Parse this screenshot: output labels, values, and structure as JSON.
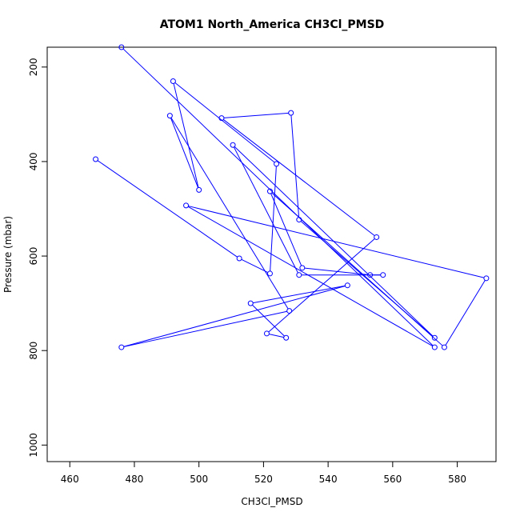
{
  "chart_data": {
    "type": "line",
    "title": "ATOM1 North_America CH3Cl_PMSD",
    "xlabel": "CH3Cl_PMSD",
    "ylabel": "Pressure (mbar)",
    "xlim": [
      453,
      592
    ],
    "ylim": [
      1035,
      158
    ],
    "y_reversed": true,
    "x_ticks": [
      460,
      480,
      500,
      520,
      540,
      560,
      580
    ],
    "y_ticks": [
      200,
      400,
      600,
      800,
      1000
    ],
    "series_color": "#0000ff",
    "series": [
      {
        "points": [
          [
            468,
            395
          ],
          [
            512.5,
            605
          ],
          [
            522,
            637
          ],
          [
            524,
            405
          ],
          [
            492,
            230
          ],
          [
            500,
            460
          ],
          [
            491,
            303
          ],
          [
            528,
            716
          ],
          [
            476,
            793
          ],
          [
            546,
            662
          ],
          [
            516,
            700
          ],
          [
            527,
            773
          ],
          [
            521,
            764
          ],
          [
            555,
            560
          ],
          [
            507,
            308
          ],
          [
            528.5,
            297
          ],
          [
            531,
            523
          ],
          [
            573,
            773
          ],
          [
            510.5,
            365
          ],
          [
            531,
            640
          ],
          [
            557,
            640
          ],
          [
            553,
            640
          ],
          [
            532,
            625
          ],
          [
            522,
            463
          ],
          [
            576,
            793
          ],
          [
            589,
            647
          ],
          [
            496,
            493
          ],
          [
            573,
            793
          ],
          [
            476,
            158
          ]
        ]
      }
    ]
  }
}
